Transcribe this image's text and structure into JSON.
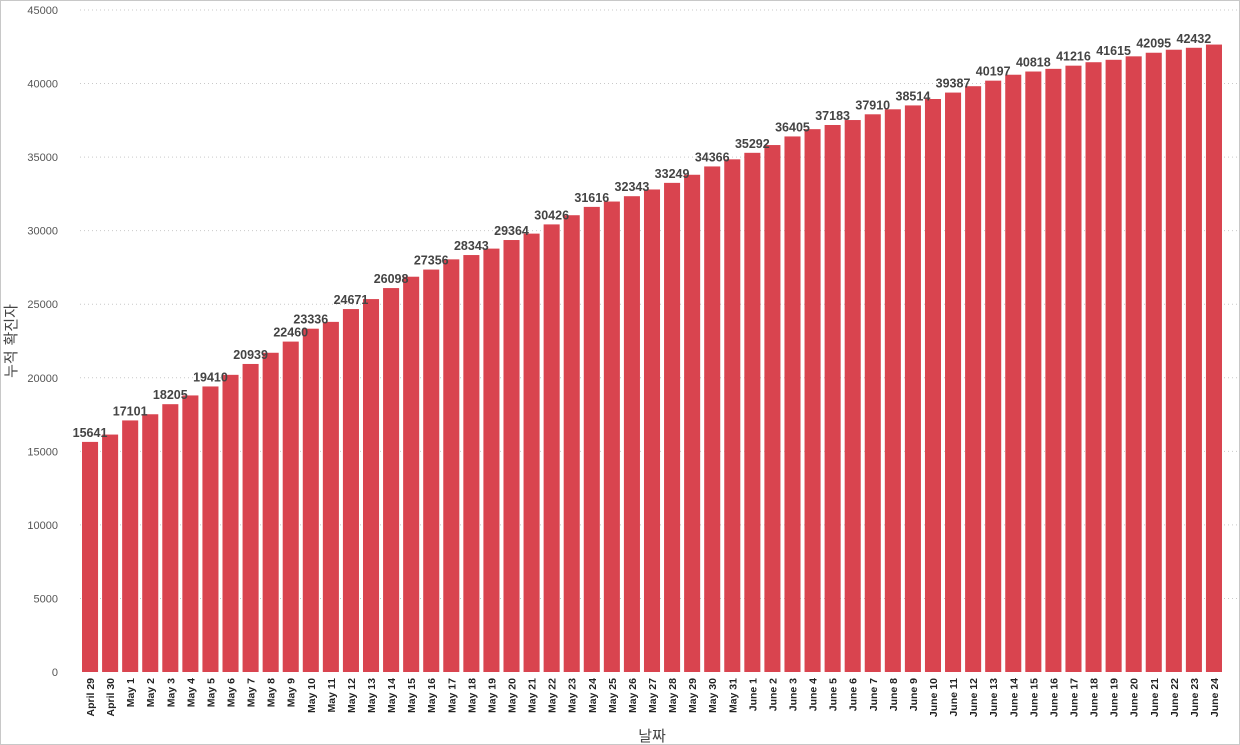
{
  "chart_data": {
    "type": "bar",
    "xlabel": "날짜",
    "ylabel": "누적 확진자",
    "ylim": [
      0,
      45000
    ],
    "yticks": [
      0,
      5000,
      10000,
      15000,
      20000,
      25000,
      30000,
      35000,
      40000,
      45000
    ],
    "grid": true,
    "bar_color": "#d9444f",
    "categories": [
      "April 29",
      "April 30",
      "May 1",
      "May 2",
      "May 3",
      "May 4",
      "May 5",
      "May 6",
      "May 7",
      "May 8",
      "May 9",
      "May 10",
      "May 11",
      "May 12",
      "May 13",
      "May 14",
      "May 15",
      "May 16",
      "May 17",
      "May 18",
      "May 19",
      "May 20",
      "May 21",
      "May 22",
      "May 23",
      "May 24",
      "May 25",
      "May 26",
      "May 27",
      "May 28",
      "May 29",
      "May 30",
      "May 31",
      "June 1",
      "June 2",
      "June 3",
      "June 4",
      "June 5",
      "June 6",
      "June 7",
      "June 8",
      "June 9",
      "June 10",
      "June 11",
      "June 12",
      "June 13",
      "June 14",
      "June 15",
      "June 16",
      "June 17",
      "June 18",
      "June 19",
      "June 20",
      "June 21",
      "June 22",
      "June 23",
      "June 24"
    ],
    "values": [
      15641,
      16140,
      17101,
      17520,
      18205,
      18800,
      19410,
      20200,
      20939,
      21700,
      22460,
      23336,
      23800,
      24671,
      25350,
      26098,
      26870,
      27356,
      28050,
      28343,
      28780,
      29364,
      29800,
      30426,
      31050,
      31616,
      31980,
      32343,
      32800,
      33249,
      33800,
      34366,
      34850,
      35292,
      35820,
      36405,
      36900,
      37183,
      37520,
      37910,
      38250,
      38514,
      38950,
      39387,
      39820,
      40197,
      40600,
      40818,
      41000,
      41216,
      41450,
      41615,
      41850,
      42095,
      42300,
      42432,
      42650
    ],
    "data_labels": [
      "15641",
      "",
      "17101",
      "",
      "18205",
      "",
      "19410",
      "",
      "20939",
      "",
      "22460",
      "23336",
      "",
      "24671",
      "",
      "26098",
      "",
      "27356",
      "",
      "28343",
      "",
      "29364",
      "",
      "30426",
      "",
      "31616",
      "",
      "32343",
      "",
      "33249",
      "",
      "34366",
      "",
      "35292",
      "",
      "36405",
      "",
      "37183",
      "",
      "37910",
      "",
      "38514",
      "",
      "39387",
      "",
      "40197",
      "",
      "40818",
      "",
      "41216",
      "",
      "41615",
      "",
      "42095",
      "",
      "42432",
      ""
    ]
  }
}
